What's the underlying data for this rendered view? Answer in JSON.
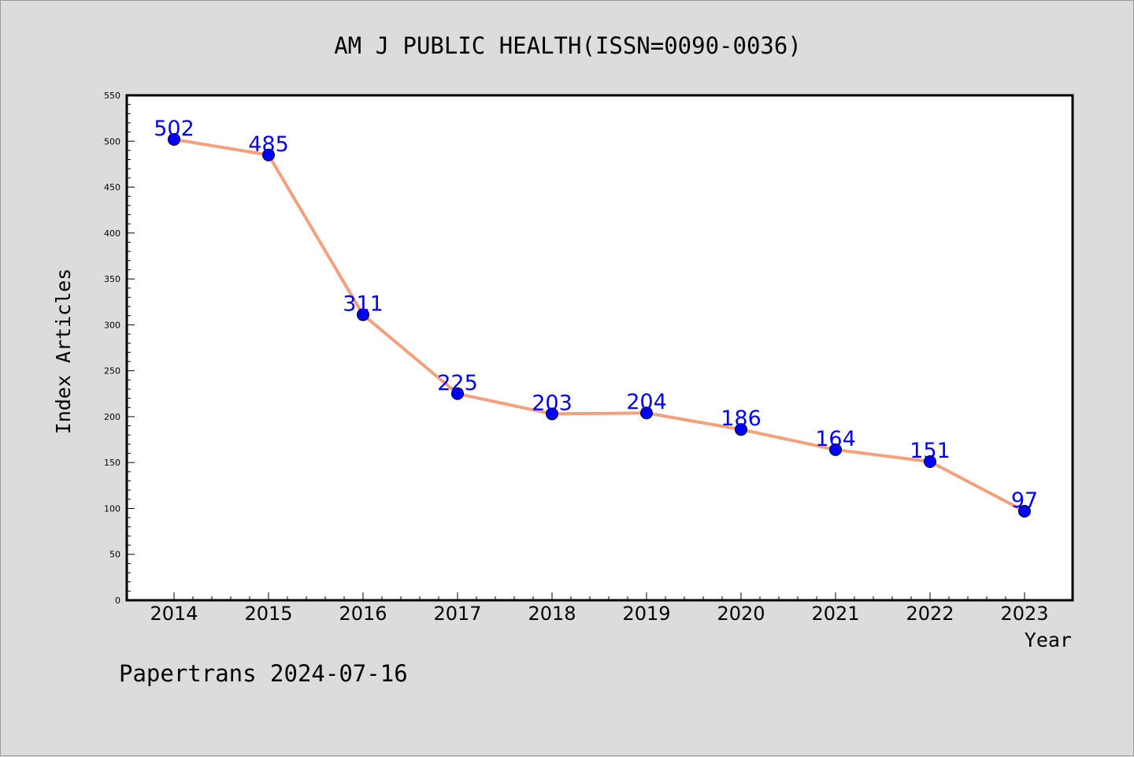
{
  "chart_data": {
    "type": "line",
    "title": "AM J PUBLIC HEALTH(ISSN=0090-0036)",
    "xlabel": "Year",
    "ylabel": "Index Articles",
    "categories": [
      "2014",
      "2015",
      "2016",
      "2017",
      "2018",
      "2019",
      "2020",
      "2021",
      "2022",
      "2023"
    ],
    "series": [
      {
        "values": [
          502,
          485,
          311,
          225,
          203,
          204,
          186,
          164,
          151,
          97
        ]
      }
    ],
    "ylim": [
      0,
      550
    ],
    "yticks": [
      0,
      50,
      100,
      150,
      200,
      250,
      300,
      350,
      400,
      450,
      500,
      550
    ],
    "grid": false,
    "legend": "none",
    "colors": {
      "line": "#f4a07a",
      "marker": "#0000ff",
      "label": "#0000ff",
      "plot_background": "#ffffff",
      "page_background": "#dcdcdc"
    }
  },
  "footer": {
    "text": "Papertrans 2024-07-16"
  }
}
